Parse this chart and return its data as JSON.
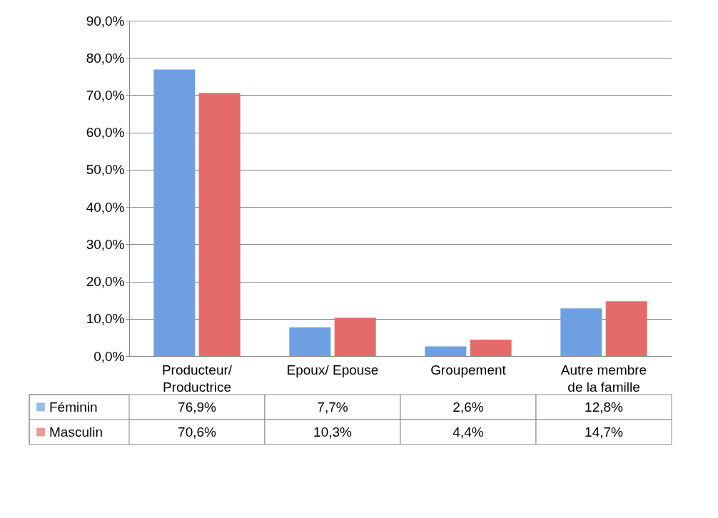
{
  "chart_data": {
    "type": "bar",
    "categories": [
      "Producteur/ Productrice",
      "Epoux/ Epouse",
      "Groupement",
      "Autre membre de la famille"
    ],
    "series": [
      {
        "name": "Féminin",
        "color": "#6f9fe3",
        "values": [
          76.9,
          7.7,
          2.6,
          12.8
        ],
        "value_labels": [
          "76,9%",
          "7,7%",
          "2,6%",
          "12,8%"
        ]
      },
      {
        "name": "Masculin",
        "color": "#e56b6b",
        "values": [
          70.6,
          10.3,
          4.4,
          14.7
        ],
        "value_labels": [
          "70,6%",
          "10,3%",
          "4,4%",
          "14,7%"
        ]
      }
    ],
    "ylim": [
      0,
      90
    ],
    "yticks": [
      {
        "value": 0,
        "label": "0,0%"
      },
      {
        "value": 10,
        "label": "10,0%"
      },
      {
        "value": 20,
        "label": "20,0%"
      },
      {
        "value": 30,
        "label": "30,0%"
      },
      {
        "value": 40,
        "label": "40,0%"
      },
      {
        "value": 50,
        "label": "50,0%"
      },
      {
        "value": 60,
        "label": "60,0%"
      },
      {
        "value": 70,
        "label": "70,0%"
      },
      {
        "value": 80,
        "label": "80,0%"
      },
      {
        "value": 90,
        "label": "90,0%"
      }
    ],
    "grid": "y",
    "legend": "bottom"
  }
}
